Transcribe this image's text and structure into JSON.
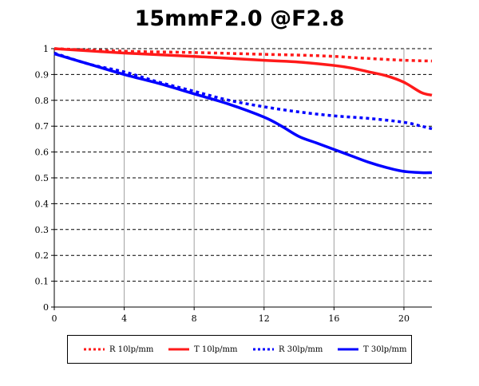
{
  "chart_data": {
    "type": "line",
    "title": "15mmF2.0 @F2.8",
    "xlabel": "",
    "ylabel": "",
    "xlim": [
      0,
      21.6
    ],
    "ylim": [
      0,
      1
    ],
    "x_ticks": [
      "0",
      "4",
      "8",
      "12",
      "16",
      "20"
    ],
    "y_ticks": [
      "0",
      "0.1",
      "0.2",
      "0.3",
      "0.4",
      "0.5",
      "0.6",
      "0.7",
      "0.8",
      "0.9",
      "1"
    ],
    "grid": "dashed horizontal, solid vertical",
    "legend_position": "bottom",
    "series": [
      {
        "name": "R 10lp/mm",
        "color": "#ff1a1a",
        "style": "dotted",
        "points": [
          [
            0,
            1.0
          ],
          [
            4,
            0.99
          ],
          [
            8,
            0.985
          ],
          [
            12,
            0.978
          ],
          [
            14,
            0.975
          ],
          [
            16,
            0.97
          ],
          [
            18,
            0.962
          ],
          [
            20,
            0.955
          ],
          [
            21.6,
            0.952
          ]
        ]
      },
      {
        "name": "T 10lp/mm",
        "color": "#ff1a1a",
        "style": "solid",
        "points": [
          [
            0,
            1.0
          ],
          [
            4,
            0.983
          ],
          [
            8,
            0.97
          ],
          [
            12,
            0.955
          ],
          [
            14,
            0.948
          ],
          [
            16,
            0.935
          ],
          [
            17,
            0.925
          ],
          [
            18,
            0.91
          ],
          [
            19,
            0.895
          ],
          [
            20,
            0.87
          ],
          [
            21,
            0.83
          ],
          [
            21.6,
            0.82
          ]
        ]
      },
      {
        "name": "R 30lp/mm",
        "color": "#0000ff",
        "style": "dotted",
        "points": [
          [
            0,
            0.983
          ],
          [
            2,
            0.94
          ],
          [
            4,
            0.91
          ],
          [
            6,
            0.87
          ],
          [
            8,
            0.835
          ],
          [
            10,
            0.8
          ],
          [
            12,
            0.775
          ],
          [
            14,
            0.755
          ],
          [
            16,
            0.74
          ],
          [
            18,
            0.73
          ],
          [
            20,
            0.715
          ],
          [
            21,
            0.7
          ],
          [
            21.6,
            0.69
          ]
        ]
      },
      {
        "name": "T 30lp/mm",
        "color": "#0000ff",
        "style": "solid",
        "points": [
          [
            0,
            0.98
          ],
          [
            2,
            0.94
          ],
          [
            4,
            0.9
          ],
          [
            6,
            0.865
          ],
          [
            8,
            0.825
          ],
          [
            10,
            0.785
          ],
          [
            12,
            0.735
          ],
          [
            13,
            0.7
          ],
          [
            14,
            0.66
          ],
          [
            15,
            0.635
          ],
          [
            16,
            0.61
          ],
          [
            17,
            0.585
          ],
          [
            18,
            0.56
          ],
          [
            19,
            0.54
          ],
          [
            20,
            0.525
          ],
          [
            21,
            0.52
          ],
          [
            21.6,
            0.52
          ]
        ]
      }
    ]
  }
}
